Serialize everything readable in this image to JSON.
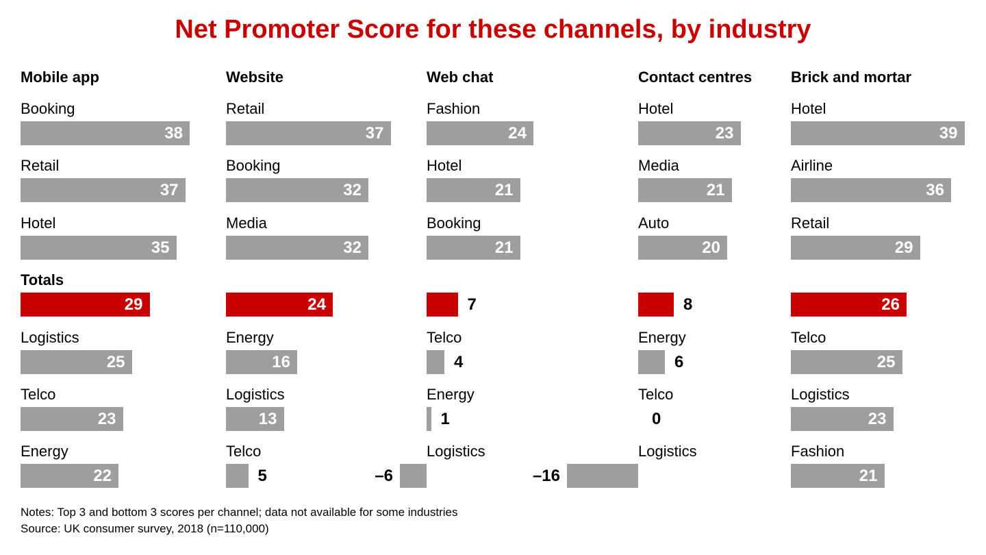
{
  "title": "Net Promoter Score for these channels, by industry",
  "colors": {
    "title_red": "#c80000",
    "total_bar_red": "#c80000",
    "bar_gray": "#9e9e9e",
    "value_inside_text": "#ffffff",
    "text_black": "#000000"
  },
  "footer": {
    "notes": "Notes: Top 3 and bottom 3 scores per channel; data not available for some industries",
    "source": "Source: UK consumer survey, 2018 (n=110,000)"
  },
  "chart_data": {
    "type": "bar",
    "orientation": "horizontal",
    "value_kind": "Net Promoter Score",
    "totals_label": "Totals",
    "columns": [
      {
        "channel": "Mobile app",
        "rows": [
          {
            "label": "Booking",
            "value": 38
          },
          {
            "label": "Retail",
            "value": 37
          },
          {
            "label": "Hotel",
            "value": 35
          },
          {
            "label": "Totals",
            "value": 29,
            "is_total": true
          },
          {
            "label": "Logistics",
            "value": 25
          },
          {
            "label": "Telco",
            "value": 23
          },
          {
            "label": "Energy",
            "value": 22
          }
        ]
      },
      {
        "channel": "Website",
        "rows": [
          {
            "label": "Retail",
            "value": 37
          },
          {
            "label": "Booking",
            "value": 32
          },
          {
            "label": "Media",
            "value": 32
          },
          {
            "label": "",
            "value": 24,
            "is_total": true
          },
          {
            "label": "Energy",
            "value": 16
          },
          {
            "label": "Logistics",
            "value": 13
          },
          {
            "label": "Telco",
            "value": 5
          }
        ]
      },
      {
        "channel": "Web chat",
        "rows": [
          {
            "label": "Fashion",
            "value": 24
          },
          {
            "label": "Hotel",
            "value": 21
          },
          {
            "label": "Booking",
            "value": 21
          },
          {
            "label": "",
            "value": 7,
            "is_total": true
          },
          {
            "label": "Telco",
            "value": 4
          },
          {
            "label": "Energy",
            "value": 1
          },
          {
            "label": "Logistics",
            "value": -6
          }
        ]
      },
      {
        "channel": "Contact centres",
        "rows": [
          {
            "label": "Hotel",
            "value": 23
          },
          {
            "label": "Media",
            "value": 21
          },
          {
            "label": "Auto",
            "value": 20
          },
          {
            "label": "",
            "value": 8,
            "is_total": true
          },
          {
            "label": "Energy",
            "value": 6
          },
          {
            "label": "Telco",
            "value": 0
          },
          {
            "label": "Logistics",
            "value": -16
          }
        ]
      },
      {
        "channel": "Brick and mortar",
        "rows": [
          {
            "label": "Hotel",
            "value": 39
          },
          {
            "label": "Airline",
            "value": 36
          },
          {
            "label": "Retail",
            "value": 29
          },
          {
            "label": "",
            "value": 26,
            "is_total": true
          },
          {
            "label": "Telco",
            "value": 25
          },
          {
            "label": "Logistics",
            "value": 23
          },
          {
            "label": "Fashion",
            "value": 21
          }
        ]
      }
    ]
  }
}
